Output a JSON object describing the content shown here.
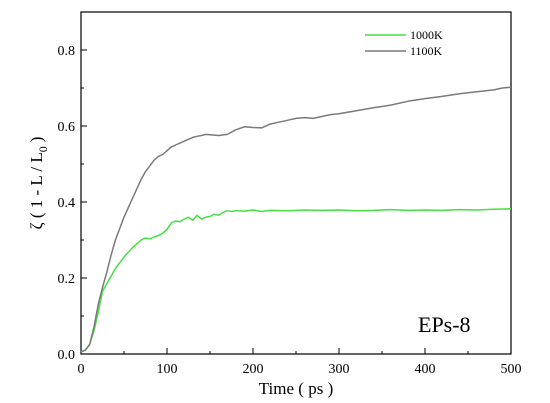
{
  "chart_data": {
    "type": "line",
    "title": "",
    "xlabel": "Time ( ps )",
    "ylabel_main": "ζ ( 1 - L / L",
    "ylabel_sub": "0",
    "ylabel_close": ")",
    "xlim": [
      0,
      500
    ],
    "ylim": [
      0,
      0.9
    ],
    "xticks": [
      0,
      100,
      200,
      300,
      400,
      500
    ],
    "xtick_labels": [
      "0",
      "100",
      "200",
      "300",
      "400",
      "500"
    ],
    "yticks": [
      0.0,
      0.2,
      0.4,
      0.6,
      0.8
    ],
    "ytick_labels": [
      "0.0",
      "0.2",
      "0.4",
      "0.6",
      "0.8"
    ],
    "grid": false,
    "legend_position": "top-right",
    "annotation": "EPs-8",
    "series": [
      {
        "name": "1000K",
        "color": "#44e044",
        "x": [
          0,
          5,
          10,
          15,
          20,
          25,
          30,
          35,
          40,
          45,
          50,
          55,
          60,
          65,
          70,
          75,
          80,
          85,
          90,
          95,
          100,
          105,
          110,
          115,
          120,
          125,
          130,
          135,
          140,
          145,
          150,
          155,
          160,
          165,
          170,
          175,
          180,
          190,
          200,
          210,
          220,
          240,
          260,
          280,
          300,
          320,
          340,
          360,
          380,
          400,
          420,
          440,
          460,
          480,
          500
        ],
        "y": [
          0.005,
          0.01,
          0.025,
          0.06,
          0.11,
          0.165,
          0.185,
          0.205,
          0.225,
          0.24,
          0.255,
          0.268,
          0.28,
          0.29,
          0.3,
          0.305,
          0.303,
          0.308,
          0.312,
          0.318,
          0.328,
          0.345,
          0.35,
          0.348,
          0.355,
          0.36,
          0.352,
          0.365,
          0.355,
          0.36,
          0.362,
          0.368,
          0.365,
          0.372,
          0.377,
          0.375,
          0.377,
          0.376,
          0.379,
          0.375,
          0.378,
          0.377,
          0.379,
          0.378,
          0.379,
          0.377,
          0.378,
          0.38,
          0.378,
          0.379,
          0.378,
          0.38,
          0.379,
          0.381,
          0.382
        ]
      },
      {
        "name": "1100K",
        "color": "#7a7a7a",
        "x": [
          0,
          5,
          10,
          15,
          20,
          25,
          30,
          35,
          40,
          45,
          50,
          55,
          60,
          65,
          70,
          75,
          80,
          85,
          90,
          95,
          100,
          105,
          110,
          115,
          120,
          125,
          130,
          135,
          140,
          145,
          150,
          160,
          170,
          180,
          190,
          200,
          210,
          220,
          230,
          240,
          250,
          260,
          270,
          280,
          290,
          300,
          320,
          340,
          360,
          380,
          400,
          420,
          440,
          460,
          480,
          490,
          500
        ],
        "y": [
          0.005,
          0.01,
          0.025,
          0.07,
          0.13,
          0.175,
          0.215,
          0.26,
          0.3,
          0.33,
          0.36,
          0.385,
          0.41,
          0.435,
          0.46,
          0.48,
          0.495,
          0.51,
          0.52,
          0.525,
          0.535,
          0.545,
          0.55,
          0.555,
          0.56,
          0.565,
          0.57,
          0.573,
          0.575,
          0.578,
          0.577,
          0.575,
          0.578,
          0.59,
          0.598,
          0.596,
          0.595,
          0.605,
          0.61,
          0.615,
          0.62,
          0.622,
          0.62,
          0.625,
          0.63,
          0.632,
          0.64,
          0.648,
          0.655,
          0.665,
          0.672,
          0.678,
          0.685,
          0.69,
          0.695,
          0.7,
          0.702
        ]
      }
    ]
  }
}
